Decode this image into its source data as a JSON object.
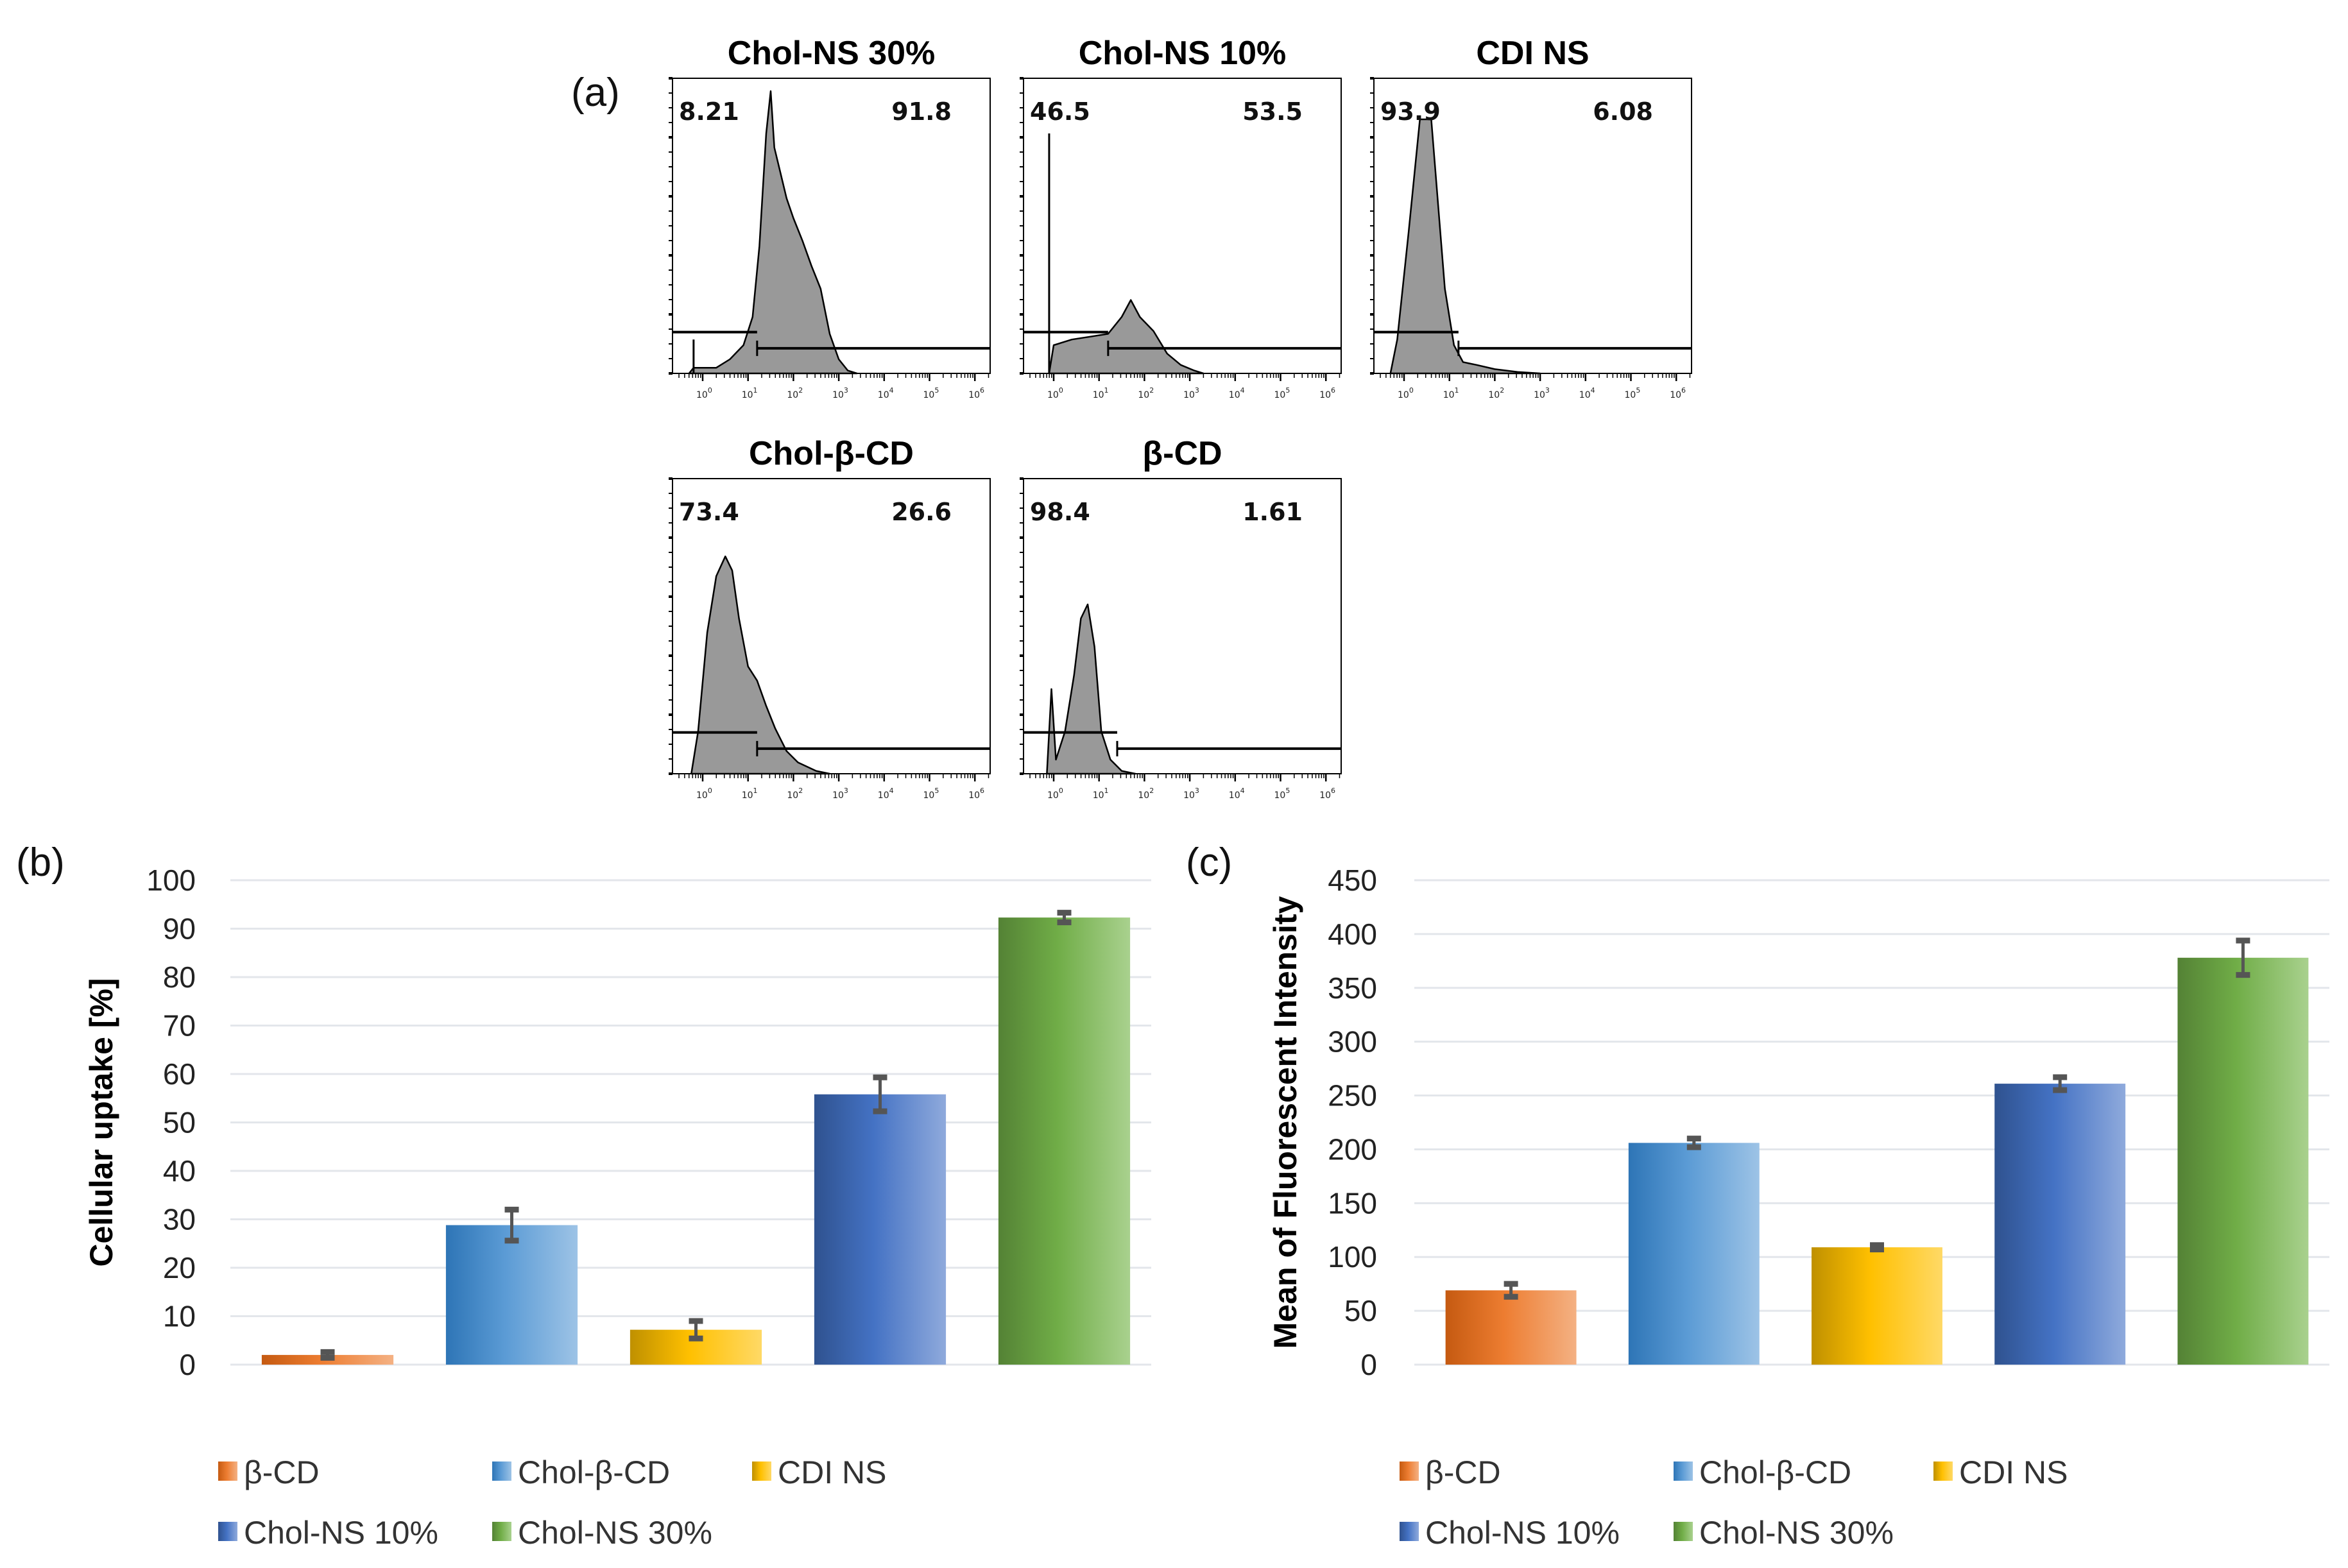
{
  "panel_labels": {
    "a": "(a)",
    "b": "(b)",
    "c": "(c)"
  },
  "colors": {
    "b-CD": [
      "#c55a11",
      "#ed7d31",
      "#f4b183"
    ],
    "Chol-b-CD": [
      "#2e75b6",
      "#5b9bd5",
      "#9dc3e6"
    ],
    "CDI NS": [
      "#bf9000",
      "#ffc000",
      "#ffd966"
    ],
    "Chol-NS 10%": [
      "#2f528f",
      "#4472c4",
      "#8faadc"
    ],
    "Chol-NS 30%": [
      "#548235",
      "#70ad47",
      "#a9d18e"
    ],
    "histogram_fill": "#999999",
    "grid": "#e3e6eb",
    "error_bar": "#555555"
  },
  "chart_data": [
    {
      "type": "histogram",
      "panel": "(a)",
      "x_tick_labels": [
        "0",
        "1",
        "2",
        "3",
        "4",
        "5",
        "6"
      ],
      "x_tick_base": "10",
      "x_scale": "log10",
      "panels": [
        {
          "title": "Chol-NS 30%",
          "left_pct": "8.21",
          "right_pct": "91.8",
          "gate_split_log": 1.2,
          "profile": [
            [
              -0.3,
              0
            ],
            [
              -0.2,
              0.02
            ],
            [
              0.3,
              0.02
            ],
            [
              0.6,
              0.05
            ],
            [
              0.9,
              0.1
            ],
            [
              1.1,
              0.2
            ],
            [
              1.25,
              0.45
            ],
            [
              1.4,
              0.85
            ],
            [
              1.5,
              1.0
            ],
            [
              1.58,
              0.8
            ],
            [
              1.7,
              0.72
            ],
            [
              1.85,
              0.62
            ],
            [
              2.0,
              0.55
            ],
            [
              2.2,
              0.47
            ],
            [
              2.4,
              0.38
            ],
            [
              2.6,
              0.3
            ],
            [
              2.8,
              0.14
            ],
            [
              3.0,
              0.05
            ],
            [
              3.2,
              0.01
            ],
            [
              3.4,
              0
            ]
          ],
          "spike": [
            -0.2,
            0.12
          ]
        },
        {
          "title": "Chol-NS 10%",
          "left_pct": "46.5",
          "right_pct": "53.5",
          "gate_split_log": 1.2,
          "profile": [
            [
              -0.1,
              0
            ],
            [
              0,
              0.1
            ],
            [
              0.4,
              0.12
            ],
            [
              0.8,
              0.13
            ],
            [
              1.2,
              0.14
            ],
            [
              1.5,
              0.2
            ],
            [
              1.7,
              0.26
            ],
            [
              1.9,
              0.2
            ],
            [
              2.2,
              0.15
            ],
            [
              2.5,
              0.07
            ],
            [
              2.8,
              0.03
            ],
            [
              3.1,
              0.01
            ],
            [
              3.3,
              0
            ]
          ],
          "spike": [
            -0.1,
            0.85
          ]
        },
        {
          "title": "CDI NS",
          "left_pct": "93.9",
          "right_pct": "6.08",
          "gate_split_log": 1.2,
          "profile": [
            [
              -0.3,
              0
            ],
            [
              -0.15,
              0.12
            ],
            [
              0.1,
              0.5
            ],
            [
              0.35,
              0.9
            ],
            [
              0.6,
              0.9
            ],
            [
              0.75,
              0.6
            ],
            [
              0.9,
              0.3
            ],
            [
              1.1,
              0.1
            ],
            [
              1.3,
              0.04
            ],
            [
              1.6,
              0.03
            ],
            [
              2.0,
              0.015
            ],
            [
              2.5,
              0.005
            ],
            [
              3.0,
              0
            ]
          ],
          "spike": null
        },
        {
          "title": "Chol-β-CD",
          "left_pct": "73.4",
          "right_pct": "26.6",
          "gate_split_log": 1.2,
          "profile": [
            [
              -0.25,
              0
            ],
            [
              -0.1,
              0.15
            ],
            [
              0.1,
              0.5
            ],
            [
              0.3,
              0.7
            ],
            [
              0.5,
              0.77
            ],
            [
              0.65,
              0.72
            ],
            [
              0.8,
              0.55
            ],
            [
              1.0,
              0.38
            ],
            [
              1.2,
              0.33
            ],
            [
              1.4,
              0.24
            ],
            [
              1.6,
              0.16
            ],
            [
              1.85,
              0.08
            ],
            [
              2.1,
              0.04
            ],
            [
              2.5,
              0.01
            ],
            [
              2.8,
              0
            ]
          ],
          "spike": null
        },
        {
          "title": "β-CD",
          "left_pct": "98.4",
          "right_pct": "1.61",
          "gate_split_log": 1.4,
          "profile": [
            [
              -0.15,
              0
            ],
            [
              -0.05,
              0.3
            ],
            [
              0.05,
              0.05
            ],
            [
              0.25,
              0.15
            ],
            [
              0.45,
              0.35
            ],
            [
              0.6,
              0.55
            ],
            [
              0.75,
              0.6
            ],
            [
              0.9,
              0.45
            ],
            [
              1.05,
              0.15
            ],
            [
              1.25,
              0.05
            ],
            [
              1.5,
              0.01
            ],
            [
              1.8,
              0
            ]
          ],
          "spike": null
        }
      ]
    },
    {
      "type": "bar",
      "panel": "(b)",
      "categories": [
        "β-CD",
        "Chol-β-CD",
        "CDI NS",
        "Chol-NS 10%",
        "Chol-NS 30%"
      ],
      "values": [
        2.0,
        28.8,
        7.2,
        55.8,
        92.3
      ],
      "errors": [
        0.6,
        3.2,
        1.8,
        3.5,
        1.0
      ],
      "ylabel": "Cellular uptake [%]",
      "ylim": [
        0,
        100
      ],
      "yticks": [
        "0",
        "10",
        "20",
        "30",
        "40",
        "50",
        "60",
        "70",
        "80",
        "90",
        "100"
      ],
      "grid": true,
      "legend_position": "bottom"
    },
    {
      "type": "bar",
      "panel": "(c)",
      "categories": [
        "β-CD",
        "Chol-β-CD",
        "CDI NS",
        "Chol-NS 10%",
        "Chol-NS 30%"
      ],
      "values": [
        69,
        206,
        109,
        261,
        378
      ],
      "errors": [
        6,
        4,
        2,
        6,
        16
      ],
      "ylabel": "Mean of Fluorescent Intensity",
      "ylim": [
        0,
        450
      ],
      "yticks": [
        "0",
        "50",
        "100",
        "150",
        "200",
        "250",
        "300",
        "350",
        "400",
        "450"
      ],
      "grid": true,
      "legend_position": "bottom"
    }
  ]
}
